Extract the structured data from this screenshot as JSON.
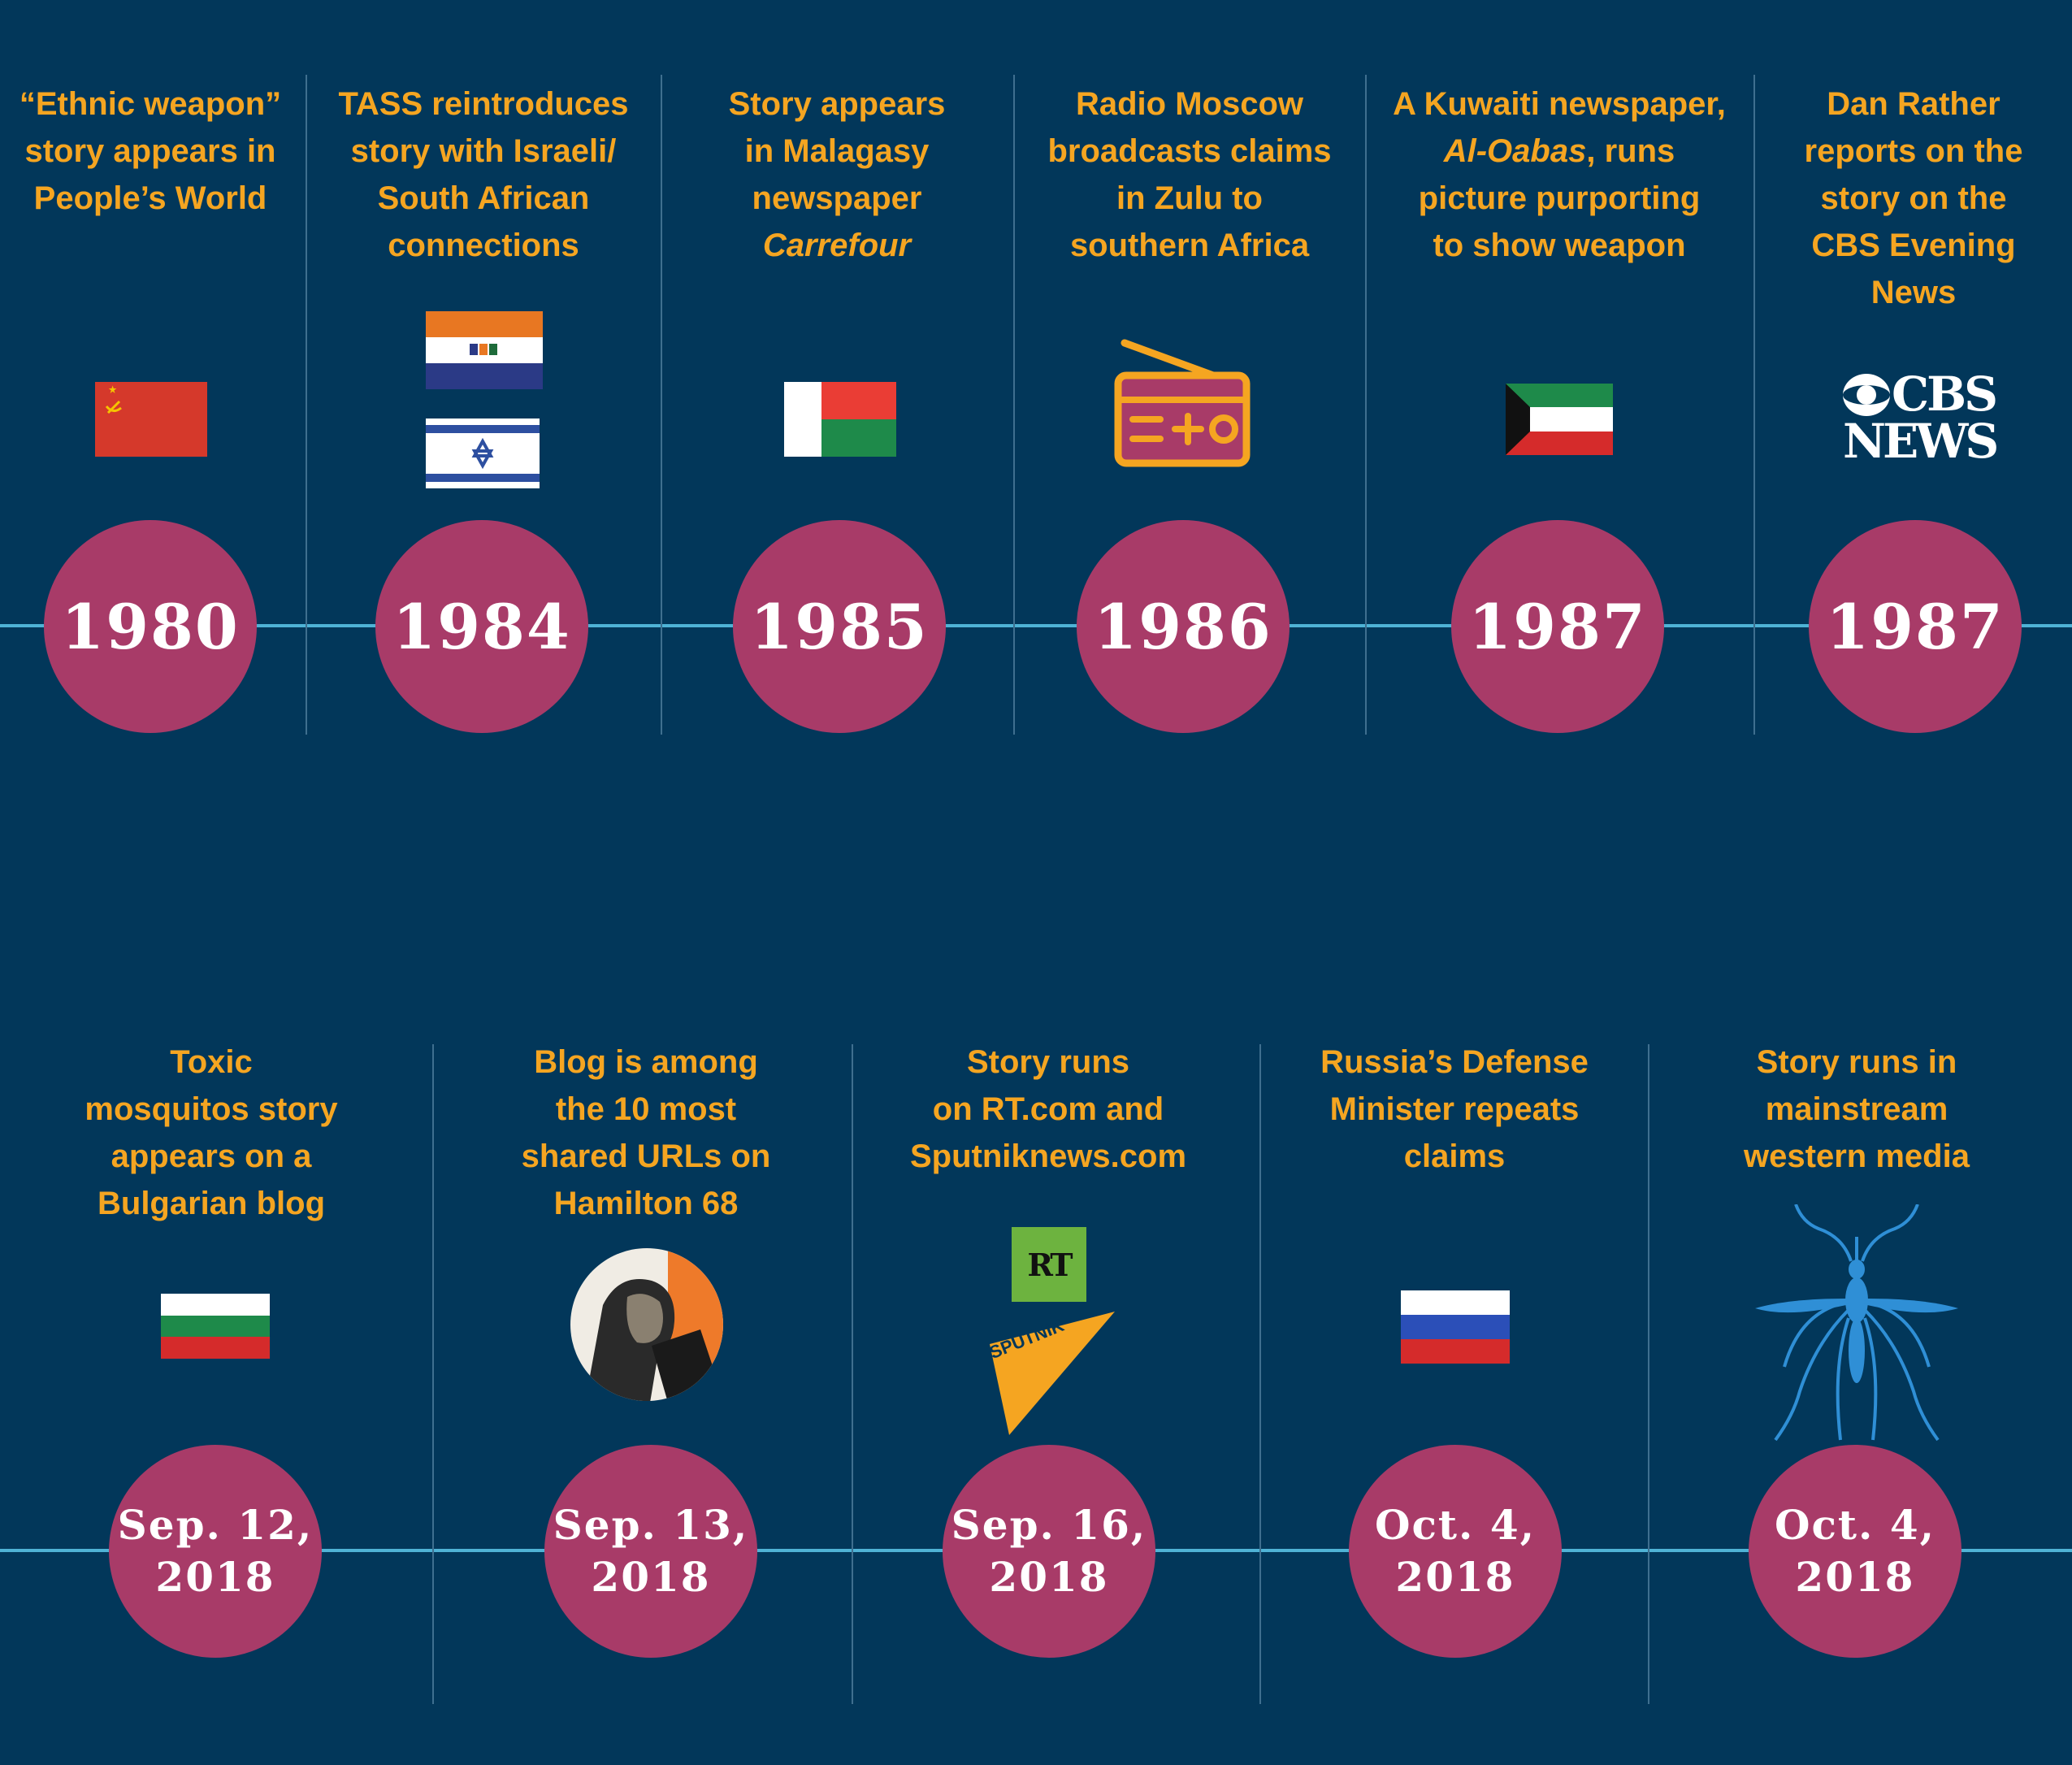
{
  "colors": {
    "background": "#02375a",
    "accent_text": "#f5a521",
    "circle": "#a83b68",
    "timeline": "#4fb3d6"
  },
  "top_row": [
    {
      "year": "1980",
      "lines": [
        "“Ethnic weapon”",
        "story appears in",
        "People’s World"
      ],
      "icon": "ussr-flag-icon"
    },
    {
      "year": "1984",
      "lines": [
        "TASS reintroduces",
        "story with Israeli/",
        "South African",
        "connections"
      ],
      "icon": "south-africa-israel-flags-icon"
    },
    {
      "year": "1985",
      "lines": [
        "Story appears",
        "in Malagasy",
        "newspaper",
        "Carrefour"
      ],
      "icon": "madagascar-flag-icon"
    },
    {
      "year": "1986",
      "lines": [
        "Radio Moscow",
        "broadcasts claims",
        "in Zulu to",
        "southern Africa"
      ],
      "icon": "radio-icon"
    },
    {
      "year": "1987",
      "lines": [
        "A Kuwaiti newspaper,",
        "Al-Oabas, runs",
        "picture  purporting",
        "to show weapon"
      ],
      "icon": "kuwait-flag-icon"
    },
    {
      "year": "1987",
      "lines": [
        "Dan Rather",
        "reports on the",
        "story on the",
        "CBS Evening",
        "News"
      ],
      "icon": "cbs-news-logo",
      "logo_lines": [
        "CBS",
        "NEWS"
      ]
    }
  ],
  "bottom_row": [
    {
      "date_line1": "Sep. 12,",
      "date_line2": "2018",
      "lines": [
        "Toxic",
        "mosquitos story",
        "appears on a",
        "Bulgarian blog"
      ],
      "icon": "bulgaria-flag-icon"
    },
    {
      "date_line1": "Sep. 13,",
      "date_line2": "2018",
      "lines": [
        "Blog is among",
        "the 10 most",
        "shared URLs on",
        "Hamilton 68"
      ],
      "icon": "portrait-icon"
    },
    {
      "date_line1": "Sep. 16,",
      "date_line2": "2018",
      "lines": [
        "Story runs",
        "on RT.com and",
        "Sputniknews.com"
      ],
      "icon": "rt-sputnik-logos",
      "rt_label": "RT",
      "sputnik_label": "SPUTNIK"
    },
    {
      "date_line1": "Oct. 4,",
      "date_line2": "2018",
      "lines": [
        "Russia’s Defense",
        "Minister repeats",
        "claims"
      ],
      "icon": "russia-flag-icon"
    },
    {
      "date_line1": "Oct. 4,",
      "date_line2": "2018",
      "lines": [
        "Story runs in",
        "mainstream",
        "western media"
      ],
      "icon": "mosquito-icon"
    }
  ]
}
